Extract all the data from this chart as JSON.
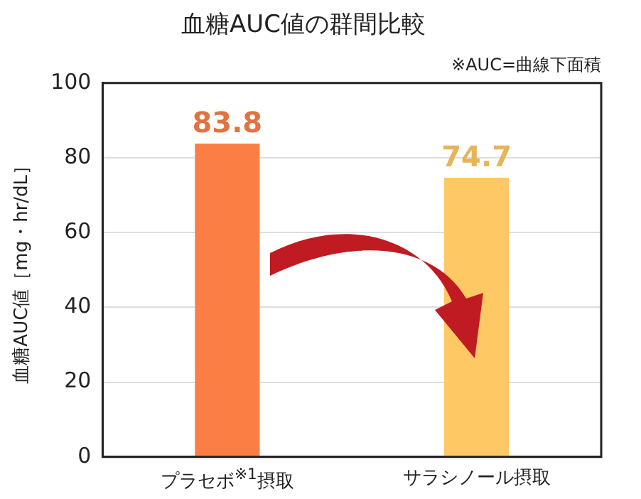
{
  "chart_data": {
    "type": "bar",
    "title": "血糖AUC値の群間比較",
    "ylabel": "血糖AUC値［mg・hr/dL］",
    "annotations": [
      "※AUC=曲線下面積"
    ],
    "categories": [
      "プラセボ$^{※1}$摂取",
      "サラシノール摂取"
    ],
    "values": [
      83.8,
      74.7
    ],
    "colors": [
      "#fb7f45",
      "#fec865"
    ],
    "ylim": [
      0,
      100
    ],
    "yticks": [
      0,
      20,
      40,
      60,
      80,
      100
    ],
    "grid": "y",
    "data_labels": true,
    "legend": false
  }
}
